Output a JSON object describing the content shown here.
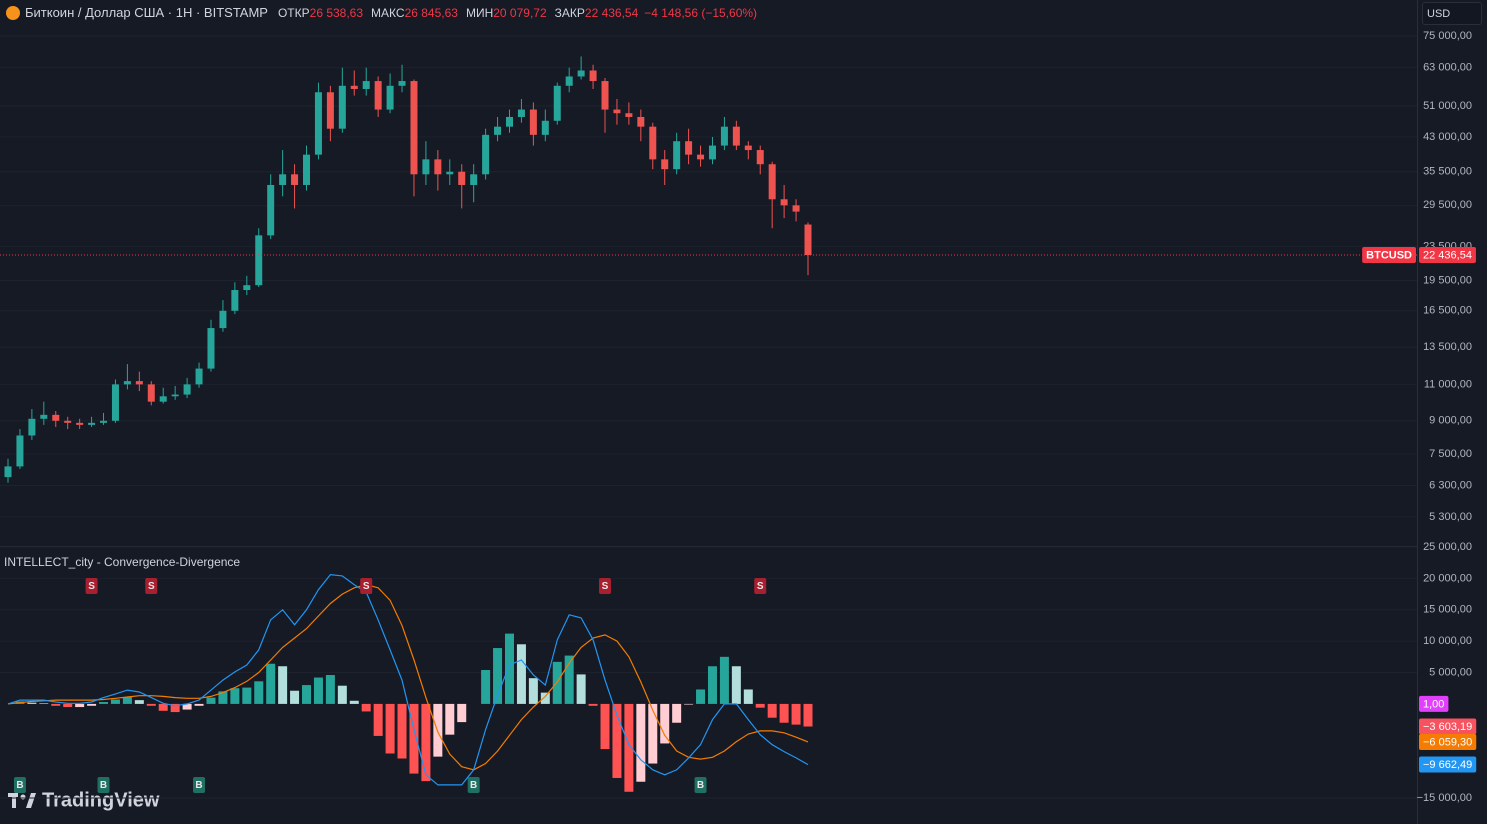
{
  "header": {
    "symbol": "Биткоин / Доллар США · 1H · BITSTAMP",
    "open_label": "ОТКР",
    "open": "26 538,63",
    "high_label": "МАКС",
    "high": "26 845,63",
    "low_label": "МИН",
    "low": "20 079,72",
    "close_label": "ЗАКР",
    "close": "22 436,54",
    "change": "−4 148,56 (−15,60%)"
  },
  "currency_button": "USD",
  "watermark": "TradingView",
  "chart_data": [
    {
      "type": "candlestick",
      "log_scale": true,
      "grid": true,
      "up_color": "#26a69a",
      "down_color": "#ef5350",
      "ylim": [
        4540,
        81000
      ],
      "yticks": [
        {
          "value": 75000,
          "label": "75 000,00"
        },
        {
          "value": 63000,
          "label": "63 000,00"
        },
        {
          "value": 51000,
          "label": "51 000,00"
        },
        {
          "value": 43000,
          "label": "43 000,00"
        },
        {
          "value": 35500,
          "label": "35 500,00"
        },
        {
          "value": 29500,
          "label": "29 500,00"
        },
        {
          "value": 23500,
          "label": "23 500,00"
        },
        {
          "value": 19500,
          "label": "19 500,00"
        },
        {
          "value": 16500,
          "label": "16 500,00"
        },
        {
          "value": 13500,
          "label": "13 500,00"
        },
        {
          "value": 11000,
          "label": "11 000,00"
        },
        {
          "value": 9000,
          "label": "9 000,00"
        },
        {
          "value": 7500,
          "label": "7 500,00"
        },
        {
          "value": 6300,
          "label": "6 300,00"
        },
        {
          "value": 5300,
          "label": "5 300,00"
        }
      ],
      "open": [
        6600,
        7000,
        8300,
        9100,
        9300,
        9000,
        8900,
        8800,
        8900,
        9000,
        11000,
        11200,
        11000,
        10000,
        10300,
        10400,
        11000,
        12000,
        15000,
        16500,
        18500,
        19000,
        25000,
        33000,
        35000,
        33000,
        39000,
        55000,
        45000,
        57000,
        56000,
        58500,
        50000,
        57000,
        58500,
        35000,
        38000,
        35000,
        35500,
        33000,
        35000,
        43500,
        45500,
        48000,
        50000,
        43500,
        47000,
        57000,
        60000,
        62000,
        58500,
        50000,
        49000,
        48000,
        45500,
        38000,
        36000,
        42000,
        39000,
        38000,
        41000,
        45500,
        41000,
        40000,
        37000,
        30500,
        29500,
        26538.63
      ],
      "high": [
        7300,
        8600,
        9600,
        10000,
        9500,
        9200,
        9100,
        9200,
        9400,
        11300,
        12300,
        11800,
        11200,
        10800,
        10900,
        11400,
        12400,
        15700,
        17500,
        19300,
        20000,
        26000,
        35000,
        40000,
        37000,
        41000,
        58000,
        57000,
        63000,
        62000,
        63000,
        60000,
        61000,
        64000,
        59000,
        42000,
        40000,
        38000,
        37000,
        37000,
        45000,
        48000,
        50000,
        53000,
        52000,
        50000,
        58000,
        63000,
        67000,
        64000,
        59500,
        53000,
        52000,
        50000,
        46500,
        40000,
        44000,
        45000,
        41000,
        43000,
        48000,
        47000,
        42000,
        41000,
        37500,
        33000,
        30500,
        26845.63
      ],
      "low": [
        6400,
        6900,
        8100,
        8800,
        8700,
        8600,
        8600,
        8700,
        8800,
        8900,
        10700,
        10600,
        9800,
        9900,
        10100,
        10200,
        10800,
        11800,
        14700,
        16200,
        18000,
        18800,
        24500,
        31000,
        29000,
        32000,
        38000,
        42000,
        44000,
        54000,
        54000,
        48000,
        49000,
        55000,
        31000,
        33000,
        32000,
        33000,
        29000,
        30000,
        34000,
        42000,
        44000,
        46500,
        41000,
        42000,
        46000,
        55000,
        59000,
        56000,
        44000,
        46000,
        46000,
        42000,
        36000,
        33000,
        35000,
        37000,
        36500,
        37000,
        40000,
        40000,
        38000,
        35000,
        26000,
        27500,
        27000,
        20079.72
      ],
      "close": [
        7000,
        8300,
        9100,
        9300,
        9000,
        8900,
        8800,
        8900,
        9000,
        11000,
        11200,
        11000,
        10000,
        10300,
        10400,
        11000,
        12000,
        15000,
        16500,
        18500,
        19000,
        25000,
        33000,
        35000,
        33000,
        39000,
        55000,
        45000,
        57000,
        56000,
        58500,
        50000,
        57000,
        58500,
        35000,
        38000,
        35000,
        35500,
        33000,
        35000,
        43500,
        45500,
        48000,
        50000,
        43500,
        47000,
        57000,
        60000,
        62000,
        58500,
        50000,
        49000,
        48000,
        45500,
        38000,
        36000,
        42000,
        39000,
        38000,
        41000,
        45500,
        41000,
        40000,
        37000,
        30500,
        29500,
        28500,
        22436.54
      ],
      "last_price": {
        "symbol": "BTCUSD",
        "value": 22436.54,
        "label": "22 436,54",
        "color": "#f23645"
      }
    },
    {
      "type": "macd",
      "title": "INTELLECT_city - Convergence-Divergence",
      "grid": true,
      "ylim": [
        -17700,
        25000
      ],
      "yticks": [
        {
          "value": 25000,
          "label": "25 000,00"
        },
        {
          "value": 20000,
          "label": "20 000,00"
        },
        {
          "value": 15000,
          "label": "15 000,00"
        },
        {
          "value": 10000,
          "label": "10 000,00"
        },
        {
          "value": 5000,
          "label": "5 000,00"
        },
        {
          "value": -15000,
          "label": "−15 000,00"
        }
      ],
      "macd": {
        "color": "#2196f3",
        "values": [
          0,
          600,
          600,
          600,
          300,
          100,
          100,
          300,
          1000,
          1600,
          2200,
          1900,
          1000,
          100,
          -300,
          0,
          600,
          2200,
          3800,
          5100,
          6200,
          8600,
          13400,
          15000,
          12600,
          15000,
          18200,
          20600,
          20400,
          19000,
          17800,
          13400,
          8600,
          3800,
          -4100,
          -11300,
          -12900,
          -12900,
          -12900,
          -10500,
          -4100,
          1400,
          6200,
          7000,
          4600,
          3000,
          10200,
          14200,
          13700,
          10200,
          3800,
          -1800,
          -6500,
          -8900,
          -10500,
          -11300,
          -10500,
          -8600,
          -6500,
          -2500,
          0,
          0,
          -2500,
          -4900,
          -6500,
          -7600,
          -8600,
          -9662.49
        ]
      },
      "signal": {
        "color": "#f57c00",
        "values": [
          0,
          200,
          400,
          500,
          600,
          600,
          600,
          600,
          700,
          900,
          1100,
          1300,
          1300,
          1200,
          1000,
          900,
          900,
          1200,
          1800,
          2600,
          3600,
          5000,
          7000,
          9000,
          10500,
          12000,
          14000,
          16000,
          17500,
          18500,
          19000,
          18500,
          16500,
          12500,
          7000,
          1000,
          -4500,
          -8000,
          -10000,
          -10500,
          -9500,
          -7500,
          -5000,
          -2500,
          -500,
          1200,
          3500,
          6500,
          9000,
          10500,
          11000,
          10000,
          7500,
          3500,
          -1000,
          -5000,
          -7500,
          -8500,
          -8800,
          -8500,
          -7500,
          -6000,
          -4800,
          -4300,
          -4300,
          -4600,
          -5300,
          -6059.3
        ]
      },
      "histogram": {
        "colors": {
          "up_rising": "#26a69a",
          "up_falling": "#b2dfdb",
          "down_falling": "#ff5252",
          "down_rising": "#ffcdd2"
        },
        "values": [
          0,
          400,
          200,
          100,
          -300,
          -500,
          -500,
          -300,
          300,
          700,
          1100,
          600,
          -300,
          -1100,
          -1300,
          -900,
          -300,
          1000,
          2000,
          2500,
          2600,
          3600,
          6400,
          6000,
          2100,
          3000,
          4200,
          4600,
          2900,
          500,
          -1200,
          -5100,
          -7900,
          -8700,
          -11100,
          -12300,
          -8400,
          -4900,
          -2900,
          0,
          5400,
          8900,
          11200,
          9500,
          4100,
          1800,
          6700,
          7700,
          4700,
          -300,
          -7200,
          -11800,
          -14000,
          -12400,
          -9500,
          -6300,
          -3000,
          -100,
          2300,
          6000,
          7500,
          6000,
          2300,
          -600,
          -2200,
          -3000,
          -3300,
          -3603.19
        ]
      },
      "axis_labels": [
        {
          "value": 1,
          "label": "1,00",
          "color": "#e040fb"
        },
        {
          "value": -3603.19,
          "label": "−3 603,19",
          "color": "#f7525f"
        },
        {
          "value": -6059.3,
          "label": "−6 059,30",
          "color": "#f57c00"
        },
        {
          "value": -9662.49,
          "label": "−9 662,49",
          "color": "#2196f3"
        }
      ],
      "signals": [
        {
          "label": "S",
          "color": "#a8202f",
          "position": "top",
          "indices": [
            7,
            12,
            30,
            50,
            63
          ]
        },
        {
          "label": "B",
          "color": "#1f6f62",
          "position": "bottom",
          "indices": [
            1,
            8,
            16,
            39,
            58
          ]
        }
      ]
    }
  ]
}
